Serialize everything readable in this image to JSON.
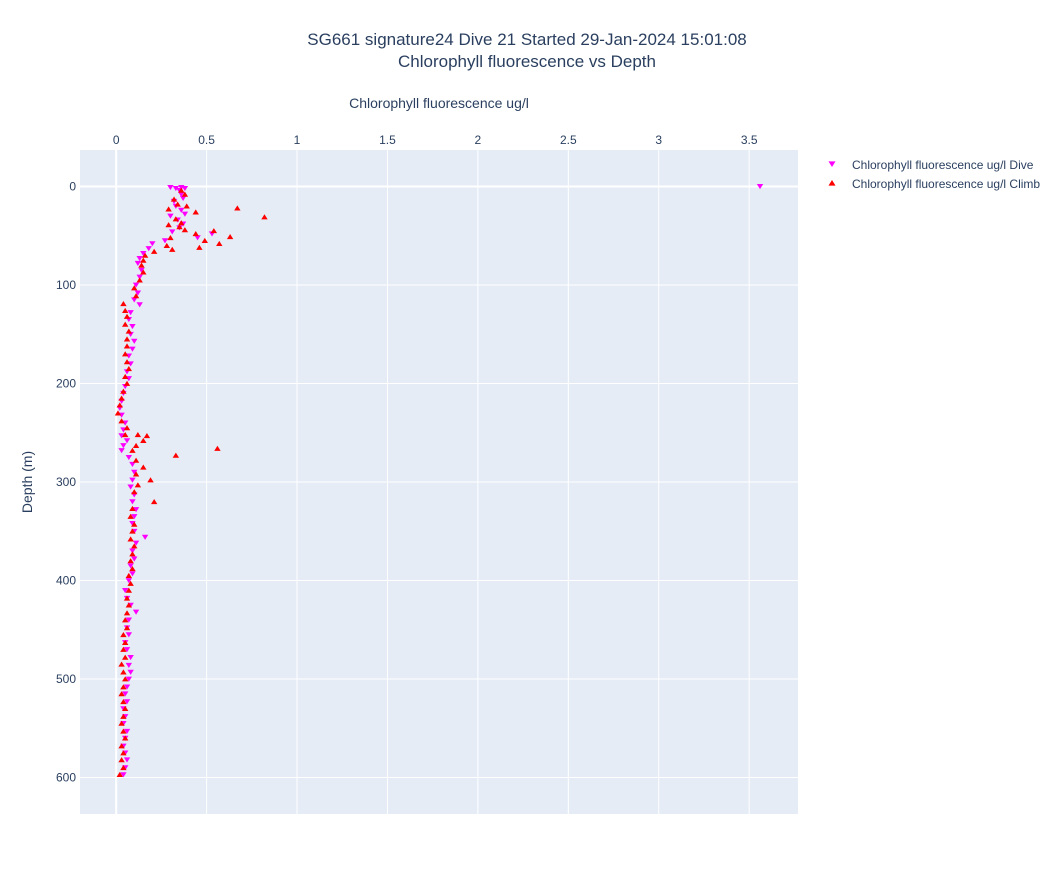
{
  "chart_data": {
    "type": "scatter",
    "title_line1": "SG661 signature24 Dive 21 Started 29-Jan-2024 15:01:08",
    "title_line2": "Chlorophyll fluorescence vs Depth",
    "xlabel": "Chlorophyll fluorescence ug/l",
    "ylabel": "Depth (m)",
    "x_axis_position": "top",
    "y_axis_reversed": true,
    "xlim": [
      -0.2,
      3.77
    ],
    "ylim": [
      637,
      -37
    ],
    "x_ticks": [
      0,
      0.5,
      1,
      1.5,
      2,
      2.5,
      3,
      3.5
    ],
    "x_tick_labels": [
      "0",
      "0.5",
      "1",
      "1.5",
      "2",
      "2.5",
      "3",
      "3.5"
    ],
    "y_ticks": [
      0,
      100,
      200,
      300,
      400,
      500,
      600
    ],
    "y_tick_labels": [
      "0",
      "100",
      "200",
      "300",
      "400",
      "500",
      "600"
    ],
    "grid": true,
    "legend_position": "top-right-outside",
    "colors": {
      "plot_background": "#e5ecf6",
      "grid": "#ffffff",
      "dive": "#ff00ff",
      "climb": "#ff0000"
    },
    "series": [
      {
        "name": "Chlorophyll fluorescence ug/l Dive",
        "marker": "triangle-down",
        "points": [
          [
            3.56,
            0
          ],
          [
            0.3,
            1
          ],
          [
            0.36,
            1
          ],
          [
            0.33,
            2
          ],
          [
            0.38,
            2
          ],
          [
            0.35,
            4
          ],
          [
            0.36,
            8
          ],
          [
            0.37,
            12
          ],
          [
            0.32,
            15
          ],
          [
            0.33,
            20
          ],
          [
            0.36,
            24
          ],
          [
            0.38,
            28
          ],
          [
            0.3,
            30
          ],
          [
            0.34,
            34
          ],
          [
            0.37,
            38
          ],
          [
            0.35,
            42
          ],
          [
            0.31,
            46
          ],
          [
            0.53,
            48
          ],
          [
            0.45,
            52
          ],
          [
            0.27,
            55
          ],
          [
            0.2,
            58
          ],
          [
            0.18,
            63
          ],
          [
            0.15,
            68
          ],
          [
            0.13,
            73
          ],
          [
            0.12,
            78
          ],
          [
            0.14,
            85
          ],
          [
            0.13,
            92
          ],
          [
            0.11,
            100
          ],
          [
            0.12,
            108
          ],
          [
            0.1,
            115
          ],
          [
            0.13,
            120
          ],
          [
            0.08,
            128
          ],
          [
            0.07,
            135
          ],
          [
            0.09,
            142
          ],
          [
            0.08,
            150
          ],
          [
            0.1,
            157
          ],
          [
            0.09,
            165
          ],
          [
            0.07,
            172
          ],
          [
            0.08,
            180
          ],
          [
            0.06,
            188
          ],
          [
            0.07,
            195
          ],
          [
            0.05,
            203
          ],
          [
            0.04,
            210
          ],
          [
            0.03,
            218
          ],
          [
            0.02,
            225
          ],
          [
            0.03,
            232
          ],
          [
            0.05,
            240
          ],
          [
            0.04,
            247
          ],
          [
            0.03,
            253
          ],
          [
            0.06,
            258
          ],
          [
            0.04,
            263
          ],
          [
            0.03,
            268
          ],
          [
            0.07,
            275
          ],
          [
            0.09,
            282
          ],
          [
            0.1,
            290
          ],
          [
            0.09,
            298
          ],
          [
            0.08,
            305
          ],
          [
            0.1,
            313
          ],
          [
            0.09,
            320
          ],
          [
            0.11,
            328
          ],
          [
            0.1,
            335
          ],
          [
            0.09,
            342
          ],
          [
            0.16,
            356
          ],
          [
            0.1,
            350
          ],
          [
            0.11,
            362
          ],
          [
            0.09,
            370
          ],
          [
            0.1,
            378
          ],
          [
            0.08,
            385
          ],
          [
            0.09,
            393
          ],
          [
            0.07,
            400
          ],
          [
            0.05,
            410
          ],
          [
            0.06,
            418
          ],
          [
            0.08,
            425
          ],
          [
            0.11,
            432
          ],
          [
            0.07,
            440
          ],
          [
            0.06,
            448
          ],
          [
            0.07,
            455
          ],
          [
            0.05,
            463
          ],
          [
            0.06,
            470
          ],
          [
            0.08,
            478
          ],
          [
            0.07,
            486
          ],
          [
            0.08,
            493
          ],
          [
            0.07,
            500
          ],
          [
            0.06,
            508
          ],
          [
            0.05,
            515
          ],
          [
            0.06,
            523
          ],
          [
            0.04,
            530
          ],
          [
            0.05,
            538
          ],
          [
            0.04,
            545
          ],
          [
            0.06,
            553
          ],
          [
            0.05,
            560
          ],
          [
            0.04,
            568
          ],
          [
            0.05,
            575
          ],
          [
            0.06,
            582
          ],
          [
            0.05,
            590
          ],
          [
            0.04,
            597
          ]
        ]
      },
      {
        "name": "Chlorophyll fluorescence ug/l Climb",
        "marker": "triangle-up",
        "points": [
          [
            0.36,
            4
          ],
          [
            0.38,
            8
          ],
          [
            0.32,
            13
          ],
          [
            0.34,
            18
          ],
          [
            0.39,
            20
          ],
          [
            0.29,
            23
          ],
          [
            0.67,
            22
          ],
          [
            0.44,
            26
          ],
          [
            0.82,
            31
          ],
          [
            0.33,
            33
          ],
          [
            0.36,
            37
          ],
          [
            0.29,
            39
          ],
          [
            0.35,
            41
          ],
          [
            0.38,
            44
          ],
          [
            0.54,
            45
          ],
          [
            0.44,
            48
          ],
          [
            0.63,
            51
          ],
          [
            0.49,
            55
          ],
          [
            0.57,
            58
          ],
          [
            0.46,
            62
          ],
          [
            0.31,
            64
          ],
          [
            0.28,
            60
          ],
          [
            0.3,
            52
          ],
          [
            0.21,
            66
          ],
          [
            0.16,
            70
          ],
          [
            0.15,
            75
          ],
          [
            0.14,
            80
          ],
          [
            0.15,
            87
          ],
          [
            0.13,
            95
          ],
          [
            0.1,
            103
          ],
          [
            0.11,
            111
          ],
          [
            0.04,
            119
          ],
          [
            0.05,
            126
          ],
          [
            0.06,
            132
          ],
          [
            0.05,
            140
          ],
          [
            0.07,
            147
          ],
          [
            0.06,
            155
          ],
          [
            0.06,
            162
          ],
          [
            0.05,
            170
          ],
          [
            0.06,
            178
          ],
          [
            0.07,
            185
          ],
          [
            0.05,
            193
          ],
          [
            0.06,
            200
          ],
          [
            0.04,
            208
          ],
          [
            0.03,
            215
          ],
          [
            0.02,
            222
          ],
          [
            0.01,
            230
          ],
          [
            0.03,
            238
          ],
          [
            0.06,
            245
          ],
          [
            0.05,
            252
          ],
          [
            0.12,
            252
          ],
          [
            0.17,
            253
          ],
          [
            0.15,
            258
          ],
          [
            0.11,
            263
          ],
          [
            0.09,
            268
          ],
          [
            0.56,
            266
          ],
          [
            0.33,
            273
          ],
          [
            0.11,
            278
          ],
          [
            0.15,
            285
          ],
          [
            0.11,
            292
          ],
          [
            0.19,
            298
          ],
          [
            0.12,
            303
          ],
          [
            0.1,
            310
          ],
          [
            0.21,
            320
          ],
          [
            0.09,
            327
          ],
          [
            0.08,
            335
          ],
          [
            0.1,
            343
          ],
          [
            0.09,
            350
          ],
          [
            0.08,
            358
          ],
          [
            0.1,
            365
          ],
          [
            0.09,
            373
          ],
          [
            0.08,
            380
          ],
          [
            0.09,
            388
          ],
          [
            0.07,
            395
          ],
          [
            0.08,
            403
          ],
          [
            0.07,
            410
          ],
          [
            0.06,
            418
          ],
          [
            0.07,
            425
          ],
          [
            0.06,
            433
          ],
          [
            0.05,
            440
          ],
          [
            0.06,
            448
          ],
          [
            0.04,
            455
          ],
          [
            0.05,
            463
          ],
          [
            0.04,
            470
          ],
          [
            0.05,
            478
          ],
          [
            0.03,
            485
          ],
          [
            0.04,
            493
          ],
          [
            0.05,
            500
          ],
          [
            0.04,
            508
          ],
          [
            0.03,
            515
          ],
          [
            0.04,
            523
          ],
          [
            0.05,
            530
          ],
          [
            0.04,
            538
          ],
          [
            0.03,
            545
          ],
          [
            0.04,
            553
          ],
          [
            0.05,
            560
          ],
          [
            0.03,
            568
          ],
          [
            0.04,
            575
          ],
          [
            0.03,
            582
          ],
          [
            0.04,
            590
          ],
          [
            0.02,
            597
          ]
        ]
      }
    ]
  }
}
